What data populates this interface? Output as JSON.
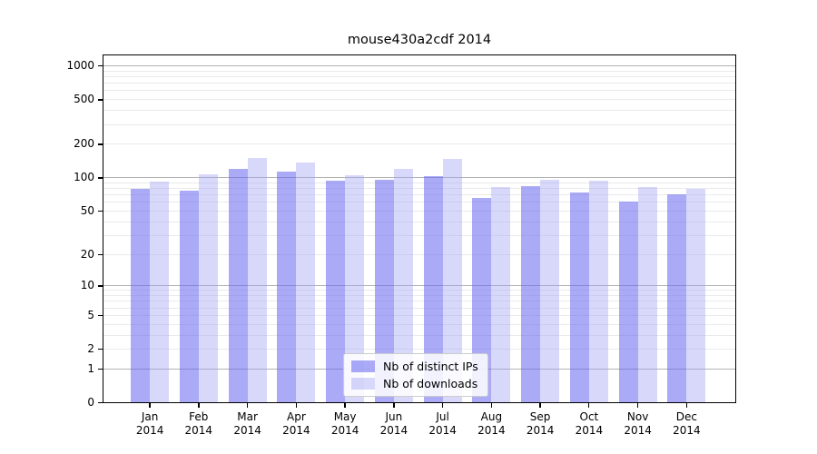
{
  "title": "mouse430a2cdf 2014",
  "legend": {
    "items": [
      {
        "label": "Nb of distinct IPs",
        "color": "rgba(100,100,240,0.55)"
      },
      {
        "label": "Nb of downloads",
        "color": "rgba(162,162,245,0.42)"
      }
    ]
  },
  "y_axis": {
    "tick_values": [
      0,
      1,
      2,
      5,
      10,
      20,
      50,
      100,
      200,
      500,
      1000
    ],
    "scale": "log1p"
  },
  "x_axis": {
    "months": [
      "Jan",
      "Feb",
      "Mar",
      "Apr",
      "May",
      "Jun",
      "Jul",
      "Aug",
      "Sep",
      "Oct",
      "Nov",
      "Dec"
    ],
    "year": "2014"
  },
  "colors": {
    "bar_distinct_ips": "rgba(100,100,240,0.55)",
    "bar_downloads": "rgba(162,162,245,0.42)",
    "grid_major": "#b2b2b2",
    "grid_minor": "#eaeaea",
    "axis": "#000000",
    "legend_border": "#cccccc"
  },
  "chart_data": {
    "type": "bar",
    "title": "mouse430a2cdf 2014",
    "categories": [
      "Jan 2014",
      "Feb 2014",
      "Mar 2014",
      "Apr 2014",
      "May 2014",
      "Jun 2014",
      "Jul 2014",
      "Aug 2014",
      "Sep 2014",
      "Oct 2014",
      "Nov 2014",
      "Dec 2014"
    ],
    "series": [
      {
        "name": "Nb of distinct IPs",
        "values": [
          79,
          76,
          120,
          113,
          93,
          95,
          102,
          65,
          83,
          73,
          60,
          70
        ]
      },
      {
        "name": "Nb of downloads",
        "values": [
          92,
          107,
          150,
          136,
          104,
          118,
          147,
          82,
          95,
          93,
          81,
          78
        ]
      }
    ],
    "xlabel": "",
    "ylabel": "",
    "yscale": "log1p",
    "ylim": [
      0,
      1250
    ],
    "yticks": [
      0,
      1,
      2,
      5,
      10,
      20,
      50,
      100,
      200,
      500,
      1000
    ],
    "grid": "major+minor horizontal",
    "legend_position": "lower center"
  }
}
